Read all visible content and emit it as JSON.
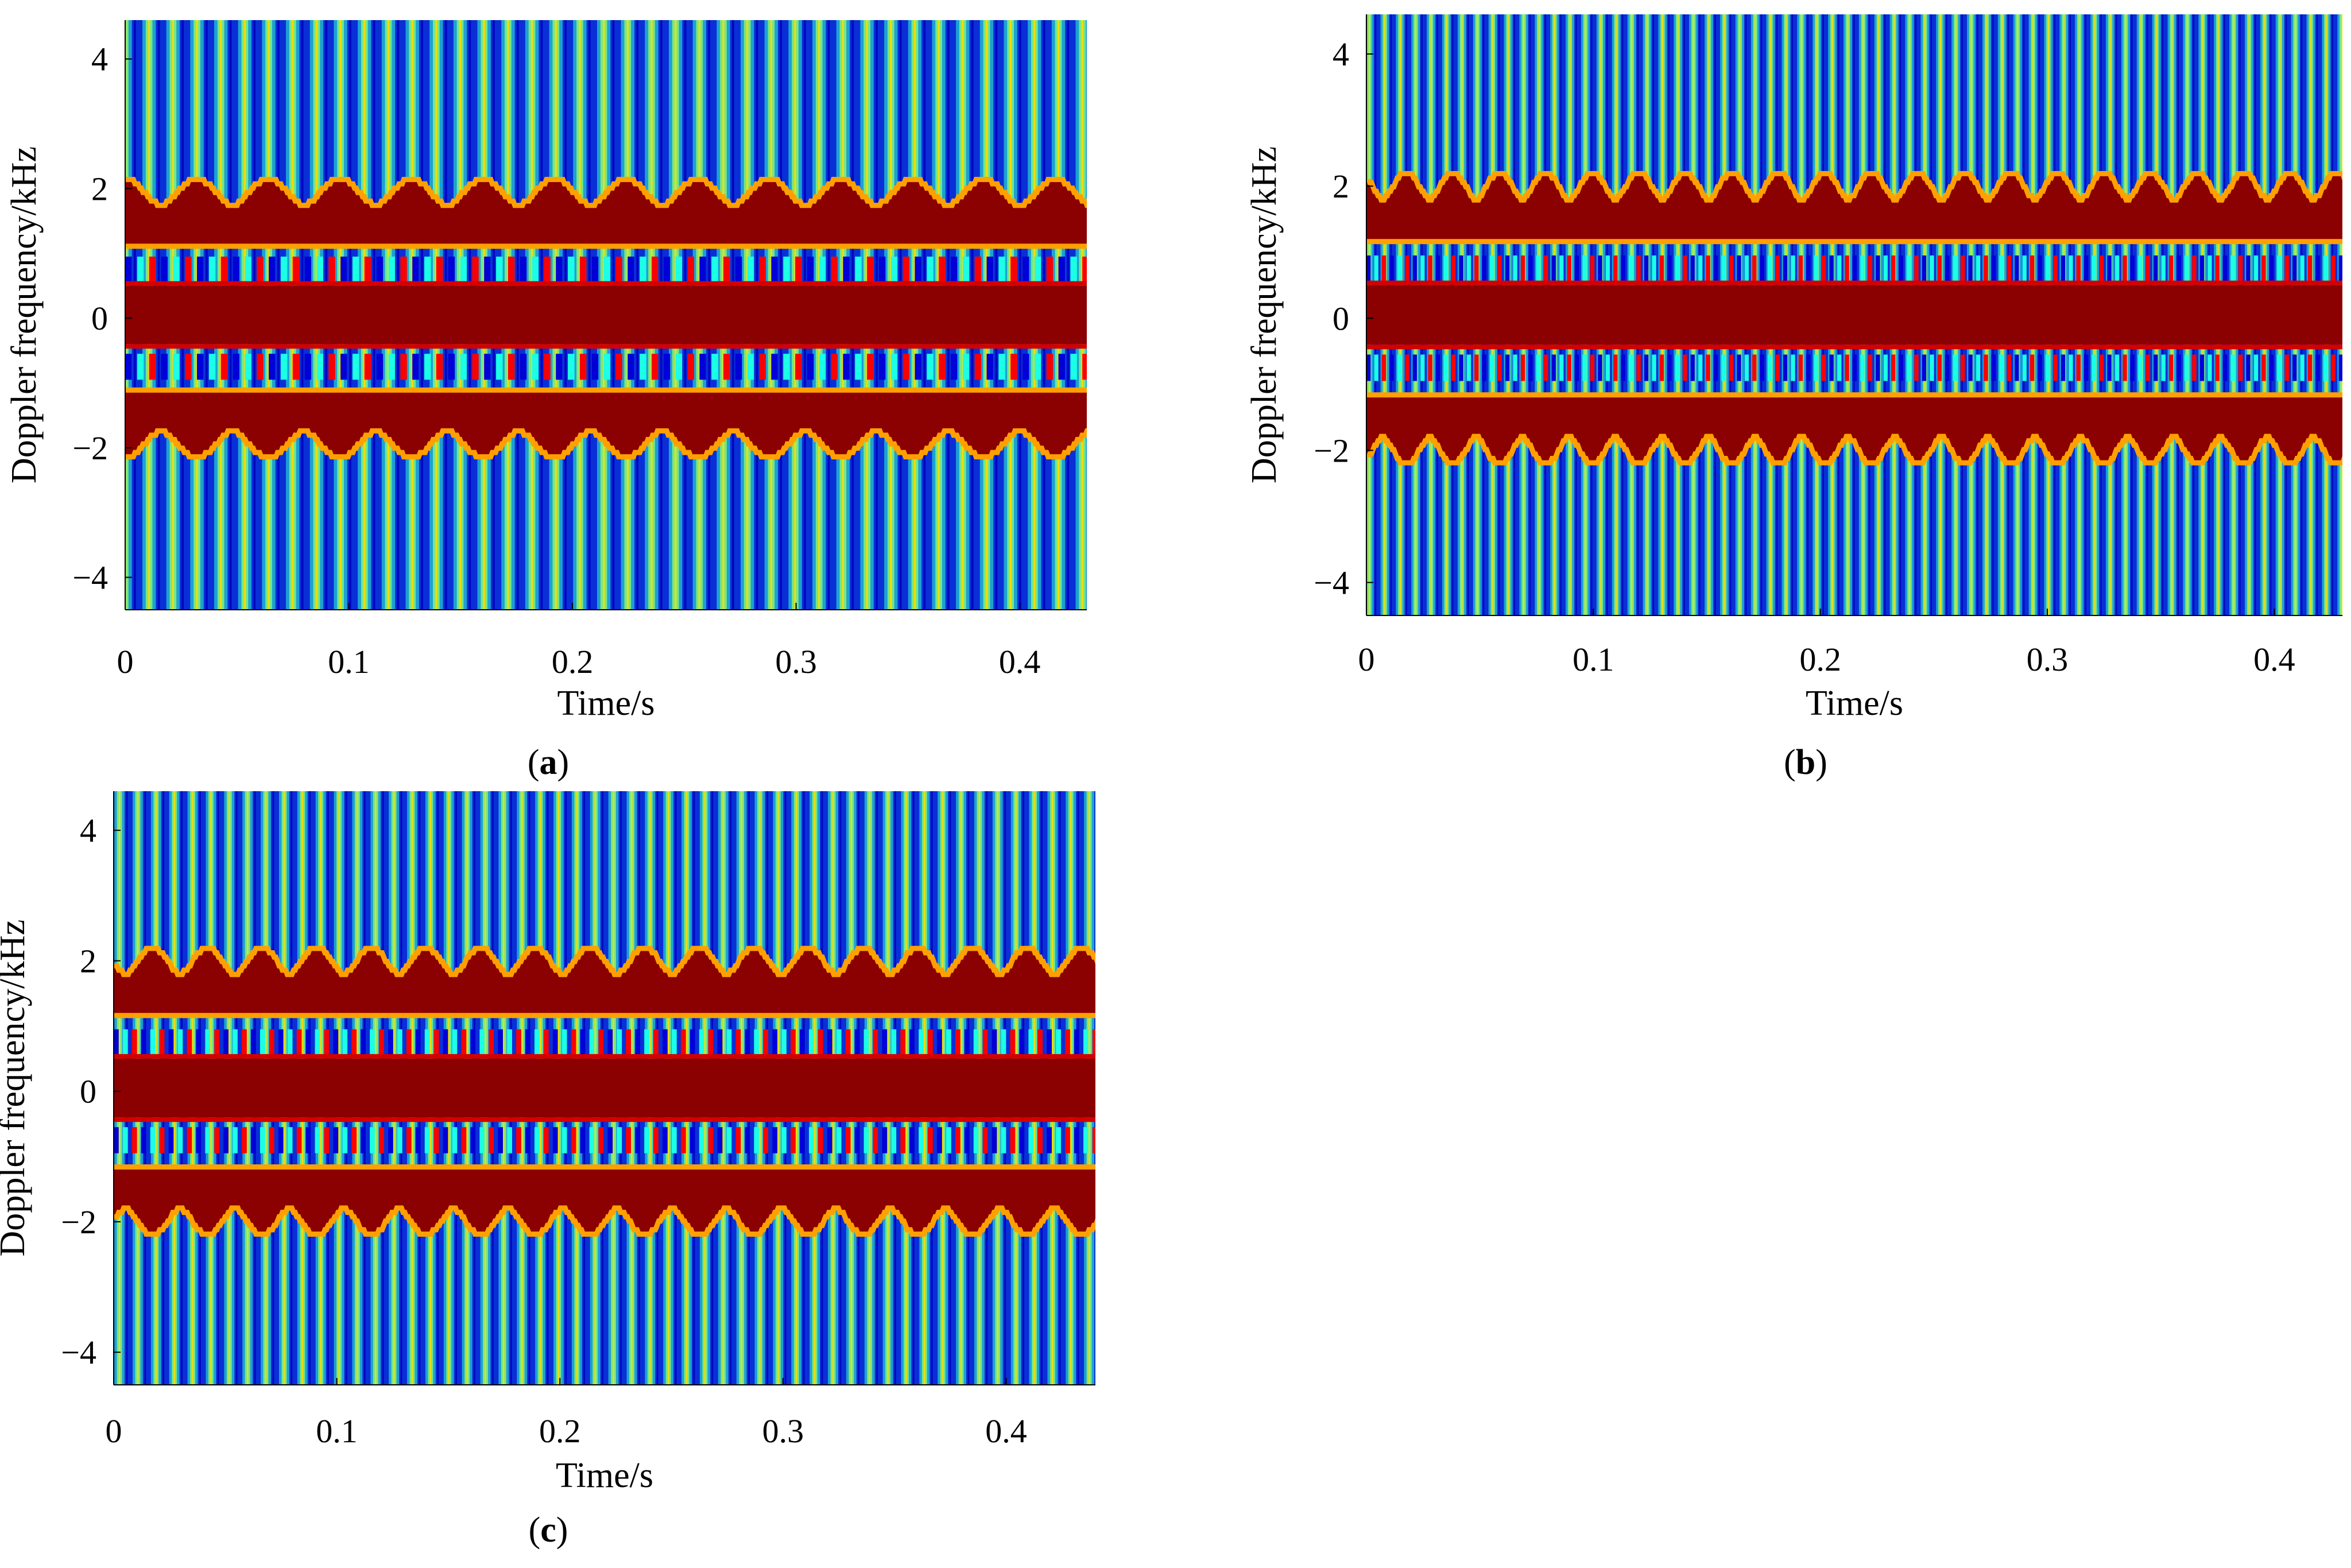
{
  "figure": {
    "panels": [
      {
        "id": "a",
        "caption": "(a)"
      },
      {
        "id": "b",
        "caption": "(b)"
      },
      {
        "id": "c",
        "caption": "(c)"
      }
    ]
  },
  "colors": {
    "colormap": [
      "#00008f",
      "#0000ff",
      "#0080ff",
      "#00ffff",
      "#80ff80",
      "#ffff00",
      "#ff8000",
      "#ff0000",
      "#800000"
    ],
    "band_dark_red": "#8b0000",
    "background_blue": "#0a2fd6"
  },
  "chart_data": [
    {
      "type": "heatmap",
      "panel": "a",
      "subtitle": "(a)",
      "xlabel": "Time/s",
      "ylabel": "Doppler frequency/kHz",
      "xlim": [
        0,
        0.43
      ],
      "ylim": [
        -4.5,
        4.6
      ],
      "xticks": [
        0,
        0.1,
        0.2,
        0.3,
        0.4
      ],
      "xtick_labels": [
        "0",
        "0.1",
        "0.2",
        "0.3",
        "0.4"
      ],
      "yticks": [
        -4,
        -2,
        0,
        2,
        4
      ],
      "ytick_labels": [
        "−4",
        "−2",
        "0",
        "2",
        "4"
      ],
      "features": {
        "central_band_khz": [
          -0.4,
          0.5
        ],
        "outer_band_peak_khz": 2.05,
        "outer_band_inner_khz": 1.15,
        "oscillation_period_s": 0.032,
        "blade_flash_period_s": 0.0107
      }
    },
    {
      "type": "heatmap",
      "panel": "b",
      "subtitle": "(b)",
      "xlabel": "Time/s",
      "ylabel": "Doppler frequency/kHz",
      "xlim": [
        0,
        0.43
      ],
      "ylim": [
        -4.5,
        4.6
      ],
      "xticks": [
        0,
        0.1,
        0.2,
        0.3,
        0.4
      ],
      "xtick_labels": [
        "0",
        "0.1",
        "0.2",
        "0.3",
        "0.4"
      ],
      "yticks": [
        -4,
        -2,
        0,
        2,
        4
      ],
      "ytick_labels": [
        "−4",
        "−2",
        "0",
        "2",
        "4"
      ],
      "features": {
        "central_band_khz": [
          -0.4,
          0.5
        ],
        "outer_band_peak_khz": 2.1,
        "outer_band_inner_khz": 1.2,
        "oscillation_period_s": 0.0205,
        "blade_flash_period_s": 0.0068
      }
    },
    {
      "type": "heatmap",
      "panel": "c",
      "subtitle": "(c)",
      "xlabel": "Time/s",
      "ylabel": "Doppler frequency/kHz",
      "xlim": [
        0,
        0.44
      ],
      "ylim": [
        -4.5,
        4.6
      ],
      "xticks": [
        0,
        0.1,
        0.2,
        0.3,
        0.4
      ],
      "xtick_labels": [
        "0",
        "0.1",
        "0.2",
        "0.3",
        "0.4"
      ],
      "yticks": [
        -4,
        -2,
        0,
        2,
        4
      ],
      "ytick_labels": [
        "−4",
        "−2",
        "0",
        "2",
        "4"
      ],
      "features": {
        "central_band_khz": [
          -0.4,
          0.5
        ],
        "outer_band_peak_khz": 2.1,
        "outer_band_inner_khz": 1.2,
        "oscillation_period_s": 0.0245,
        "blade_flash_period_s": 0.0082
      }
    }
  ]
}
